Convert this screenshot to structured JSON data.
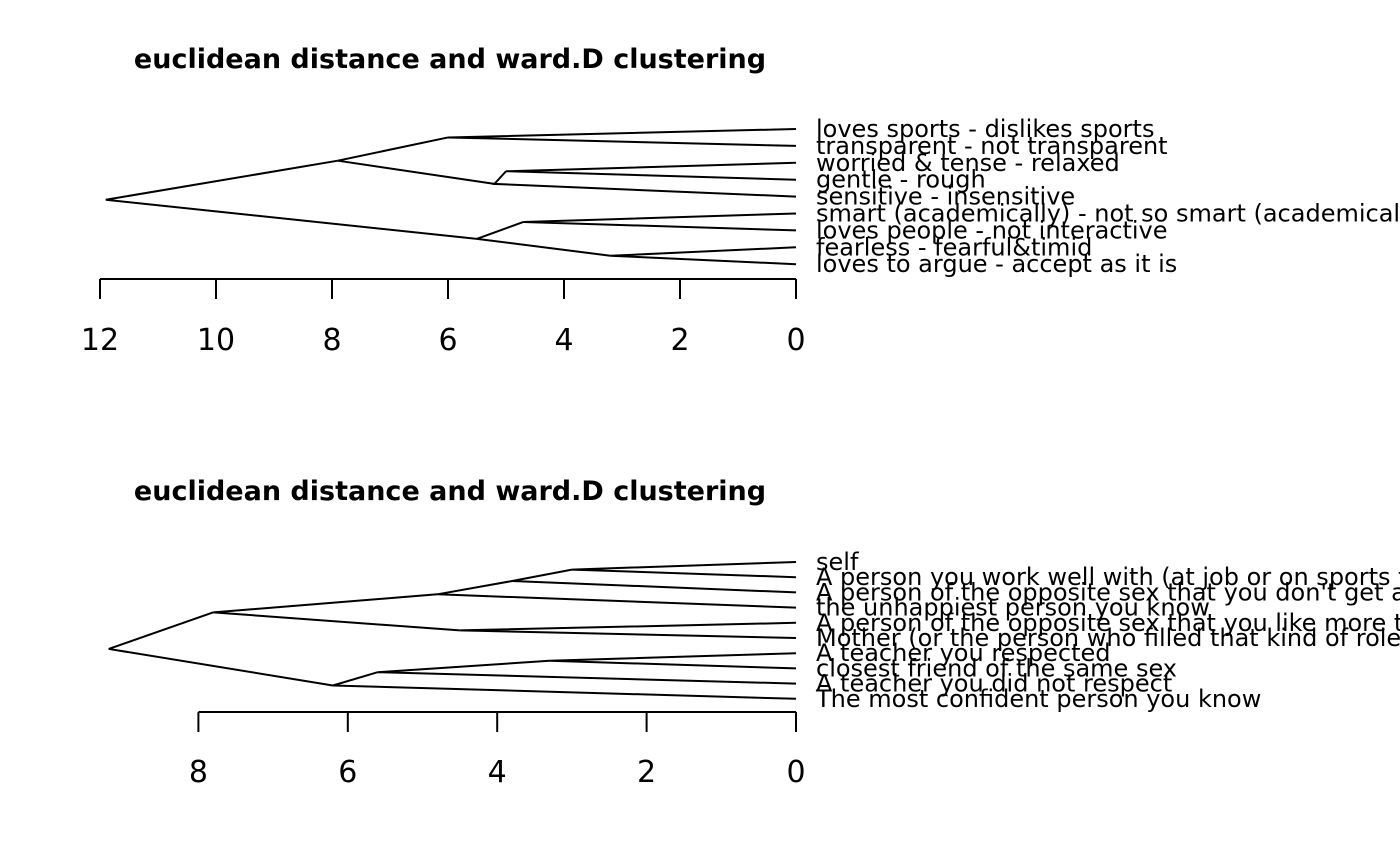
{
  "chart_data": [
    {
      "type": "dendrogram",
      "title": "euclidean distance and ward.D clustering",
      "orientation": "horizontal",
      "xlim": [
        12,
        0
      ],
      "ticks": [
        12,
        10,
        8,
        6,
        4,
        2,
        0
      ],
      "tick_labels": [
        "12",
        "10",
        "8",
        "6",
        "4",
        "2",
        "0"
      ],
      "leaves": [
        "loves sports - dislikes sports",
        "transparent - not transparent",
        "worried & tense - relaxed",
        "gentle - rough",
        "sensitive - insensitive",
        "smart (academically) - not so smart (academically)",
        "loves people - not interactive",
        "fearless - fearful&timid",
        "loves to argue - accept as it is"
      ],
      "merges": [
        {
          "left": {
            "leaf": 2
          },
          "right": {
            "leaf": 3
          },
          "height": 5.0
        },
        {
          "left": {
            "leaf": 7
          },
          "right": {
            "leaf": 8
          },
          "height": 3.2
        },
        {
          "left": {
            "leaf": 5
          },
          "right": {
            "leaf": 6
          },
          "height": 4.7
        },
        {
          "left": {
            "leaf": 0
          },
          "right": {
            "leaf": 1
          },
          "height": 6.0
        },
        {
          "left": {
            "merge": 0
          },
          "right": {
            "leaf": 4
          },
          "height": 5.2
        },
        {
          "left": {
            "merge": 2
          },
          "right": {
            "merge": 1
          },
          "height": 5.5
        },
        {
          "left": {
            "merge": 3
          },
          "right": {
            "merge": 4
          },
          "height": 7.9
        },
        {
          "left": {
            "merge": 6
          },
          "right": {
            "merge": 5
          },
          "height": 11.9
        }
      ]
    },
    {
      "type": "dendrogram",
      "title": "euclidean distance and ward.D clustering",
      "orientation": "horizontal",
      "xlim": [
        8,
        0
      ],
      "ticks": [
        8,
        6,
        4,
        2,
        0
      ],
      "tick_labels": [
        "8",
        "6",
        "4",
        "2",
        "0"
      ],
      "leaves": [
        "self",
        "A person you work well with (at job or on sports team)",
        "A person of the opposite sex that you don't get along with",
        "the unhappiest person you know",
        "A person of the opposite sex that you like more than others",
        "Mother (or the person who filled that kind of role)",
        "A teacher you respected",
        "closest friend of the same sex",
        "A teacher you did not respect",
        "The most confident person you know"
      ],
      "merges": [
        {
          "left": {
            "leaf": 0
          },
          "right": {
            "leaf": 1
          },
          "height": 3.0
        },
        {
          "left": {
            "leaf": 6
          },
          "right": {
            "leaf": 7
          },
          "height": 3.3
        },
        {
          "left": {
            "merge": 0
          },
          "right": {
            "leaf": 2
          },
          "height": 3.8
        },
        {
          "left": {
            "leaf": 4
          },
          "right": {
            "leaf": 5
          },
          "height": 4.5
        },
        {
          "left": {
            "merge": 2
          },
          "right": {
            "leaf": 3
          },
          "height": 4.8
        },
        {
          "left": {
            "merge": 1
          },
          "right": {
            "leaf": 8
          },
          "height": 5.6
        },
        {
          "left": {
            "merge": 5
          },
          "right": {
            "leaf": 9
          },
          "height": 6.2
        },
        {
          "left": {
            "merge": 4
          },
          "right": {
            "merge": 3
          },
          "height": 7.8
        },
        {
          "left": {
            "merge": 7
          },
          "right": {
            "merge": 6
          },
          "height": 9.2
        }
      ]
    }
  ]
}
